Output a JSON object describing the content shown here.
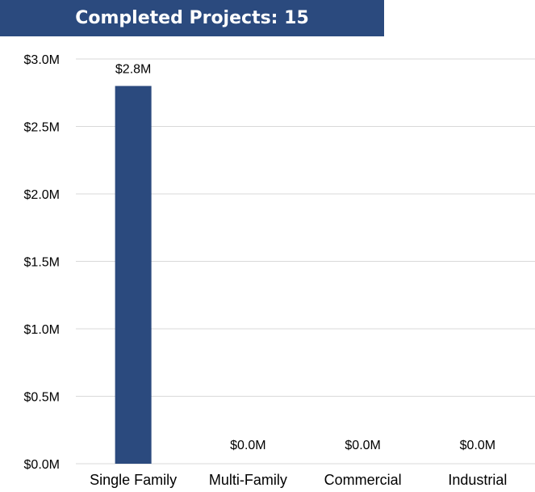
{
  "chart_data": {
    "type": "bar",
    "title": "Completed Projects: 15",
    "categories": [
      "Single Family",
      "Multi-Family",
      "Commercial",
      "Industrial"
    ],
    "values": [
      2.8,
      0.0,
      0.0,
      0.0
    ],
    "data_labels": [
      "$2.8M",
      "$0.0M",
      "$0.0M",
      "$0.0M"
    ],
    "xlabel": "",
    "ylabel": "",
    "ylim": [
      0,
      3.0
    ],
    "yticks": [
      0,
      0.5,
      1.0,
      1.5,
      2.0,
      2.5,
      3.0
    ],
    "ytick_labels": [
      "$0.0M",
      "$0.5M",
      "$1.0M",
      "$1.5M",
      "$2.0M",
      "$2.5M",
      "$3.0M"
    ],
    "grid": true,
    "legend": "none",
    "colors": {
      "bar": "#2b4a7e",
      "title_background": "#2b4a7e",
      "grid": "#d9d9d9"
    }
  }
}
